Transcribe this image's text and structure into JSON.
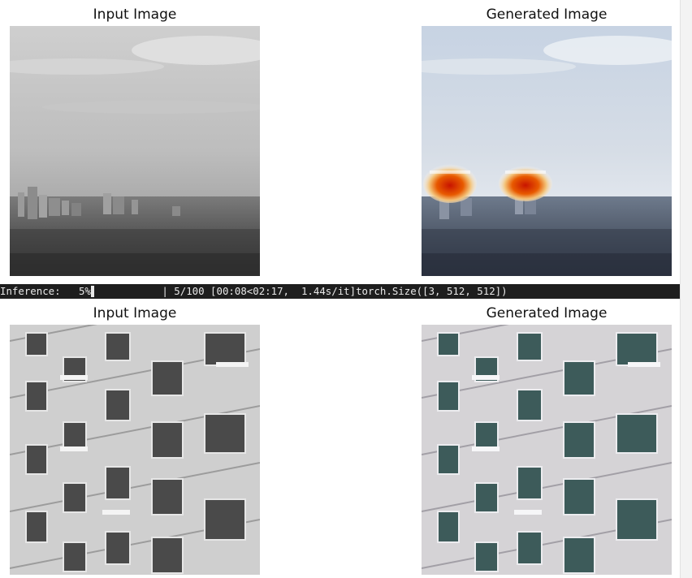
{
  "rows": [
    {
      "input_title": "Input Image",
      "generated_title": "Generated Image"
    },
    {
      "input_title": "Input Image",
      "generated_title": "Generated Image"
    }
  ],
  "progress": {
    "label": "Inference:   5%",
    "percent": 5,
    "tail": " | 5/100 [00:08<02:17,  1.44s/it]torch.Size([3, 512, 512])"
  }
}
